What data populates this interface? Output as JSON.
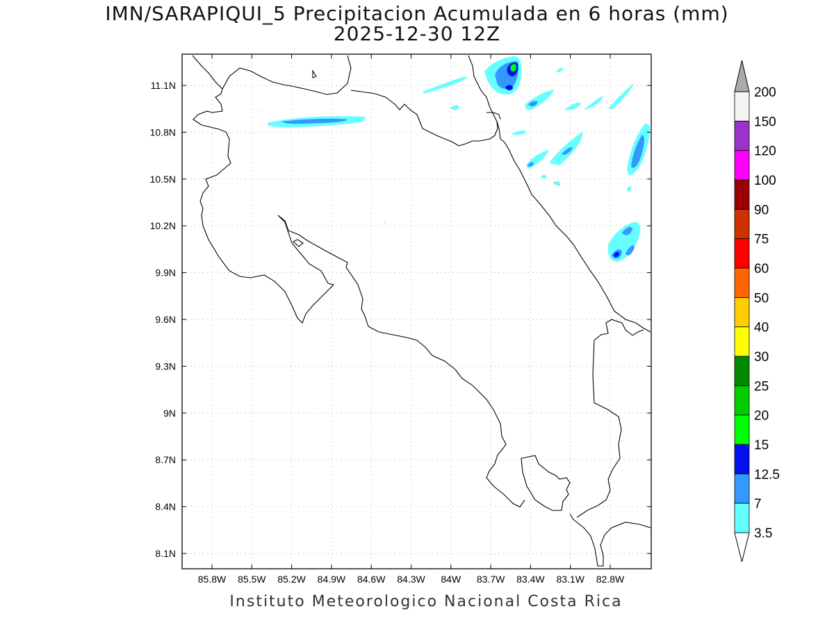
{
  "title": {
    "line1": "IMN/SARAPIQUI_5 Precipitacion Acumulada en 6 horas (mm)",
    "line2": "2025-12-30 12Z"
  },
  "credit": "Instituto Meteorologico Nacional Costa Rica",
  "map": {
    "lon_range": [
      -86.05,
      -82.55
    ],
    "lat_range": [
      7.97,
      11.3
    ],
    "x_ticks": [
      "85.8W",
      "85.5W",
      "85.2W",
      "84.9W",
      "84.6W",
      "84.3W",
      "84W",
      "83.7W",
      "83.4W",
      "83.1W",
      "82.8W"
    ],
    "y_ticks": [
      "11.1N",
      "10.8N",
      "10.5N",
      "10.2N",
      "9.9N",
      "9.6N",
      "9.3N",
      "9N",
      "8.7N",
      "8.4N",
      "8.1N"
    ],
    "grid": "dotted"
  },
  "colorbar": {
    "labels": [
      "3.5",
      "7",
      "12.5",
      "15",
      "20",
      "25",
      "30",
      "40",
      "50",
      "60",
      "75",
      "90",
      "100",
      "120",
      "150",
      "200"
    ],
    "colors": [
      "#66ffff",
      "#3399ff",
      "#0011ee",
      "#00ff00",
      "#00cc00",
      "#008800",
      "#ffff00",
      "#ffcc00",
      "#ff6600",
      "#ff0000",
      "#cc3300",
      "#990000",
      "#ff00ff",
      "#9933cc",
      "#f3f3f3",
      "#aaaaaa"
    ],
    "under_color": "#ffffff",
    "over_color": "#aaaaaa"
  }
}
